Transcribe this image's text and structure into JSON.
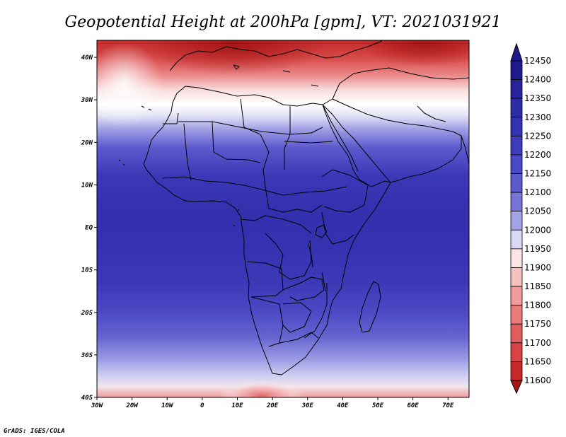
{
  "title": "Geopotential Height at 200hPa [gpm], VT: 2021031921",
  "credit": "GrADS: IGES/COLA",
  "map": {
    "lon_range": [
      -30,
      76
    ],
    "lat_range": [
      -40,
      44
    ],
    "x_ticks": [
      {
        "lon": -30,
        "label": "30W"
      },
      {
        "lon": -20,
        "label": "20W"
      },
      {
        "lon": -10,
        "label": "10W"
      },
      {
        "lon": 0,
        "label": "0"
      },
      {
        "lon": 10,
        "label": "10E"
      },
      {
        "lon": 20,
        "label": "20E"
      },
      {
        "lon": 30,
        "label": "30E"
      },
      {
        "lon": 40,
        "label": "40E"
      },
      {
        "lon": 50,
        "label": "50E"
      },
      {
        "lon": 60,
        "label": "60E"
      },
      {
        "lon": 70,
        "label": "70E"
      }
    ],
    "y_ticks": [
      {
        "lat": 40,
        "label": "40N"
      },
      {
        "lat": 30,
        "label": "30N"
      },
      {
        "lat": 20,
        "label": "20N"
      },
      {
        "lat": 10,
        "label": "10N"
      },
      {
        "lat": 0,
        "label": "EQ"
      },
      {
        "lat": -10,
        "label": "10S"
      },
      {
        "lat": -20,
        "label": "20S"
      },
      {
        "lat": -30,
        "label": "30S"
      },
      {
        "lat": -40,
        "label": "40S"
      }
    ]
  },
  "colorbar": {
    "levels": [
      "12450",
      "12400",
      "12350",
      "12300",
      "12250",
      "12200",
      "12150",
      "12100",
      "12050",
      "12000",
      "11950",
      "11900",
      "11850",
      "11800",
      "11750",
      "11700",
      "11650",
      "11600"
    ],
    "colors": [
      "#1e1a8c",
      "#28239c",
      "#2f2ca8",
      "#3633b2",
      "#3f3cba",
      "#4a48c4",
      "#5c5acc",
      "#7674d6",
      "#a3a2e6",
      "#d9d9f4",
      "#fbe4e4",
      "#f6c1c1",
      "#f09c9c",
      "#e97b7b",
      "#e25e5e",
      "#d84444",
      "#c82a2a",
      "#a81414"
    ]
  }
}
